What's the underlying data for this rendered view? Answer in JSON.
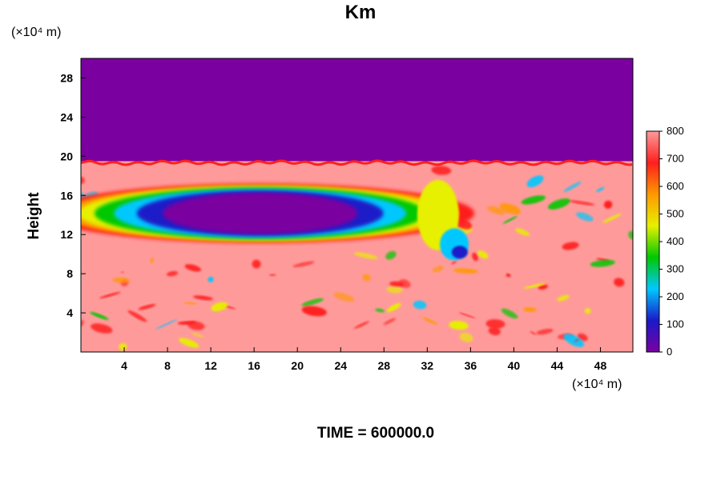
{
  "chart_data": {
    "type": "heatmap",
    "title": "Km",
    "ylabel": "Height",
    "x_unit": "(×10⁴ m)",
    "y_unit": "(×10⁴ m)",
    "xlim": [
      0,
      51
    ],
    "ylim": [
      0,
      30
    ],
    "x_ticks": [
      "4",
      "8",
      "12",
      "16",
      "20",
      "24",
      "28",
      "32",
      "36",
      "40",
      "44",
      "48"
    ],
    "y_ticks": [
      "4",
      "8",
      "12",
      "16",
      "20",
      "24",
      "28"
    ],
    "colorbar": {
      "range": [
        0,
        800
      ],
      "ticks": [
        "0",
        "100",
        "200",
        "300",
        "400",
        "500",
        "600",
        "700",
        "800"
      ],
      "colors": [
        "#7a00a0",
        "#1a1ac8",
        "#00c8ff",
        "#00c800",
        "#e6f000",
        "#ff9900",
        "#ff1e1e",
        "#ff9a9a"
      ]
    },
    "field_summary": {
      "upper_layer": {
        "y_range": [
          19.5,
          30
        ],
        "value": 0
      },
      "lower_layer": {
        "y_range": [
          0,
          19.5
        ],
        "value": 800
      },
      "low_value_band": {
        "x_range": [
          2,
          32
        ],
        "y_range": [
          12,
          17
        ],
        "value": 0
      }
    },
    "time_label": "TIME = 600000.0"
  }
}
